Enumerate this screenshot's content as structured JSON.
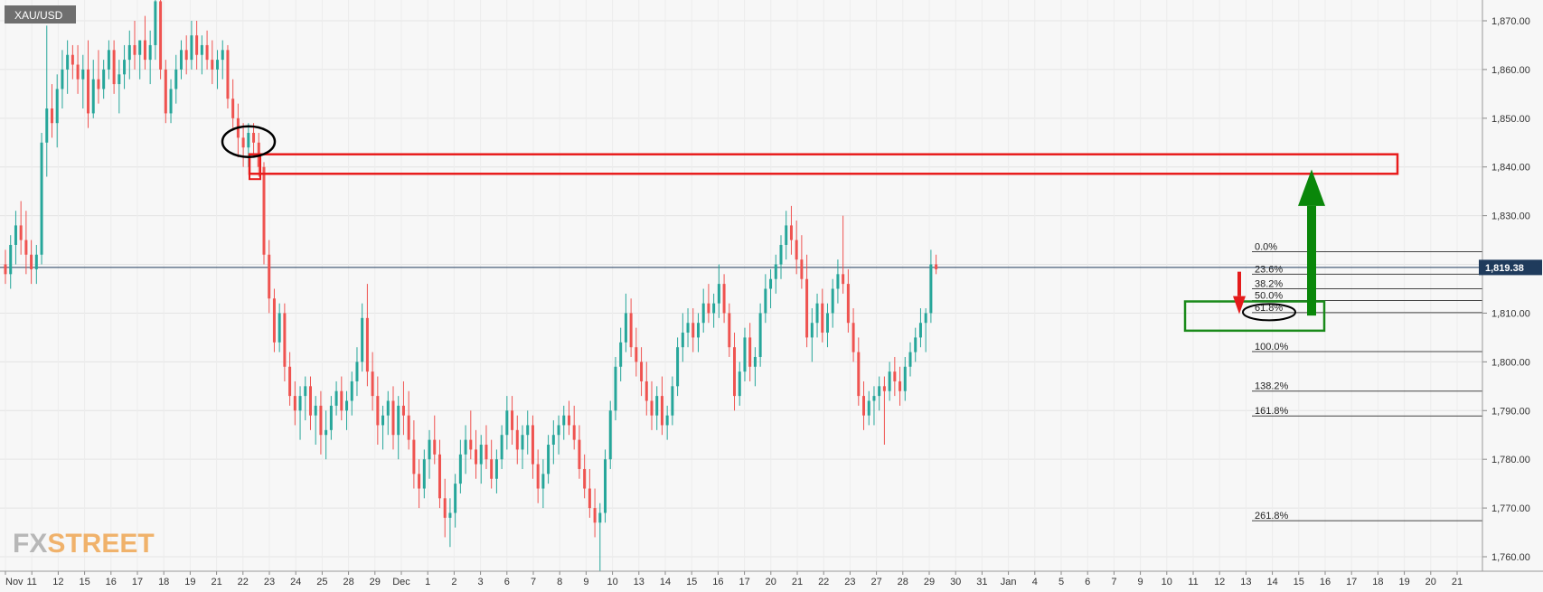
{
  "chart_data": {
    "type": "candlestick",
    "symbol": "XAU/USD",
    "current_price": "1,819.38",
    "current_price_value": 1819.38,
    "ylim": [
      1757,
      1877
    ],
    "y_ticks": [
      {
        "value": 1760,
        "label": "1,760.00"
      },
      {
        "value": 1770,
        "label": "1,770.00"
      },
      {
        "value": 1780,
        "label": "1,780.00"
      },
      {
        "value": 1790,
        "label": "1,790.00"
      },
      {
        "value": 1800,
        "label": "1,800.00"
      },
      {
        "value": 1810,
        "label": "1,810.00"
      },
      {
        "value": 1820,
        "label": "1,820.00"
      },
      {
        "value": 1830,
        "label": "1,830.00"
      },
      {
        "value": 1840,
        "label": "1,840.00"
      },
      {
        "value": 1850,
        "label": "1,850.00"
      },
      {
        "value": 1860,
        "label": "1,860.00"
      },
      {
        "value": 1870,
        "label": "1,870.00"
      }
    ],
    "x_ticks": [
      "Nov",
      "11",
      "12",
      "15",
      "16",
      "17",
      "18",
      "19",
      "21",
      "22",
      "23",
      "24",
      "25",
      "28",
      "29",
      "Dec",
      "1",
      "2",
      "3",
      "6",
      "7",
      "8",
      "9",
      "10",
      "13",
      "14",
      "15",
      "16",
      "17",
      "20",
      "21",
      "22",
      "23",
      "27",
      "28",
      "29",
      "30",
      "31",
      "Jan",
      "4",
      "5",
      "6",
      "7",
      "9",
      "10",
      "11",
      "12",
      "13",
      "14",
      "15",
      "16",
      "17",
      "18",
      "19",
      "20",
      "21"
    ],
    "grid": true,
    "colors": {
      "up": "#26a69a",
      "down": "#ef5350",
      "fib_line": "#444444",
      "zone_red": "#e81c1c",
      "zone_green": "#1a8a1a",
      "arrow_green": "#0a870a",
      "arrow_red": "#e41b1b"
    },
    "fibonacci": [
      {
        "label": "0.0%",
        "value": 1822.6
      },
      {
        "label": "23.6%",
        "value": 1818.0
      },
      {
        "label": "38.2%",
        "value": 1815.0
      },
      {
        "label": "50.0%",
        "value": 1812.6
      },
      {
        "label": "61.8%",
        "value": 1810.1
      },
      {
        "label": "100.0%",
        "value": 1802.1
      },
      {
        "label": "138.2%",
        "value": 1794.0
      },
      {
        "label": "161.8%",
        "value": 1788.9
      },
      {
        "label": "261.8%",
        "value": 1767.4
      }
    ],
    "resistance_zone": [
      1838.6,
      1842.6
    ],
    "support_zone": [
      1806.4,
      1812.4
    ],
    "candles": [
      [
        1820,
        1823,
        1816,
        1818
      ],
      [
        1818,
        1826,
        1815,
        1824
      ],
      [
        1824,
        1831,
        1820,
        1828
      ],
      [
        1828,
        1833,
        1822,
        1825
      ],
      [
        1825,
        1831,
        1818,
        1822
      ],
      [
        1822,
        1825,
        1816,
        1819
      ],
      [
        1819,
        1824,
        1816,
        1822
      ],
      [
        1822,
        1847,
        1820,
        1845
      ],
      [
        1845,
        1869,
        1838,
        1852
      ],
      [
        1852,
        1857,
        1846,
        1849
      ],
      [
        1849,
        1859,
        1844,
        1856
      ],
      [
        1856,
        1864,
        1852,
        1860
      ],
      [
        1860,
        1866,
        1855,
        1863
      ],
      [
        1863,
        1865,
        1858,
        1861
      ],
      [
        1861,
        1865,
        1855,
        1858
      ],
      [
        1858,
        1863,
        1852,
        1860
      ],
      [
        1860,
        1866,
        1848,
        1851
      ],
      [
        1851,
        1862,
        1850,
        1858
      ],
      [
        1858,
        1864,
        1853,
        1856
      ],
      [
        1856,
        1862,
        1854,
        1860
      ],
      [
        1860,
        1866,
        1858,
        1864
      ],
      [
        1864,
        1866,
        1855,
        1857
      ],
      [
        1857,
        1862,
        1851,
        1859
      ],
      [
        1859,
        1865,
        1856,
        1862
      ],
      [
        1862,
        1868,
        1858,
        1865
      ],
      [
        1865,
        1870,
        1860,
        1863
      ],
      [
        1863,
        1866,
        1858,
        1866
      ],
      [
        1866,
        1871,
        1860,
        1862
      ],
      [
        1862,
        1868,
        1857,
        1865
      ],
      [
        1865,
        1877,
        1862,
        1874
      ],
      [
        1874,
        1876,
        1858,
        1860
      ],
      [
        1860,
        1862,
        1849,
        1851
      ],
      [
        1851,
        1858,
        1849,
        1856
      ],
      [
        1856,
        1863,
        1853,
        1860
      ],
      [
        1860,
        1866,
        1858,
        1864
      ],
      [
        1864,
        1867,
        1859,
        1862
      ],
      [
        1862,
        1870,
        1860,
        1867
      ],
      [
        1867,
        1870,
        1860,
        1863
      ],
      [
        1863,
        1867,
        1859,
        1865
      ],
      [
        1865,
        1868,
        1860,
        1862
      ],
      [
        1862,
        1866,
        1857,
        1860
      ],
      [
        1860,
        1864,
        1856,
        1862
      ],
      [
        1862,
        1866,
        1858,
        1864
      ],
      [
        1864,
        1865,
        1852,
        1854
      ],
      [
        1854,
        1858,
        1848,
        1850
      ],
      [
        1850,
        1853,
        1842,
        1846
      ],
      [
        1846,
        1849,
        1840,
        1844
      ],
      [
        1844,
        1849,
        1840,
        1847
      ],
      [
        1847,
        1849,
        1842,
        1845
      ],
      [
        1845,
        1847,
        1838,
        1840
      ],
      [
        1840,
        1841,
        1820,
        1822
      ],
      [
        1822,
        1825,
        1810,
        1813
      ],
      [
        1813,
        1815,
        1802,
        1804
      ],
      [
        1804,
        1812,
        1802,
        1810
      ],
      [
        1810,
        1812,
        1796,
        1799
      ],
      [
        1799,
        1802,
        1791,
        1793
      ],
      [
        1793,
        1796,
        1787,
        1790
      ],
      [
        1790,
        1795,
        1784,
        1793
      ],
      [
        1793,
        1797,
        1788,
        1795
      ],
      [
        1795,
        1797,
        1786,
        1789
      ],
      [
        1789,
        1793,
        1783,
        1791
      ],
      [
        1791,
        1794,
        1781,
        1785
      ],
      [
        1785,
        1790,
        1780,
        1786
      ],
      [
        1786,
        1793,
        1784,
        1791
      ],
      [
        1791,
        1796,
        1789,
        1794
      ],
      [
        1794,
        1797,
        1788,
        1790
      ],
      [
        1790,
        1794,
        1786,
        1792
      ],
      [
        1792,
        1798,
        1789,
        1796
      ],
      [
        1796,
        1803,
        1793,
        1800
      ],
      [
        1800,
        1812,
        1798,
        1809
      ],
      [
        1809,
        1816,
        1795,
        1798
      ],
      [
        1798,
        1802,
        1790,
        1793
      ],
      [
        1793,
        1797,
        1783,
        1787
      ],
      [
        1787,
        1791,
        1782,
        1789
      ],
      [
        1789,
        1794,
        1785,
        1792
      ],
      [
        1792,
        1795,
        1782,
        1785
      ],
      [
        1785,
        1793,
        1780,
        1791
      ],
      [
        1791,
        1796,
        1785,
        1789
      ],
      [
        1789,
        1794,
        1782,
        1784
      ],
      [
        1784,
        1788,
        1774,
        1777
      ],
      [
        1777,
        1780,
        1770,
        1774
      ],
      [
        1774,
        1782,
        1772,
        1780
      ],
      [
        1780,
        1786,
        1776,
        1784
      ],
      [
        1784,
        1789,
        1779,
        1781
      ],
      [
        1781,
        1784,
        1770,
        1772
      ],
      [
        1772,
        1776,
        1764,
        1768
      ],
      [
        1768,
        1772,
        1762,
        1769
      ],
      [
        1769,
        1777,
        1766,
        1775
      ],
      [
        1775,
        1784,
        1773,
        1781
      ],
      [
        1781,
        1787,
        1777,
        1784
      ],
      [
        1784,
        1790,
        1780,
        1782
      ],
      [
        1782,
        1786,
        1776,
        1779
      ],
      [
        1779,
        1785,
        1775,
        1783
      ],
      [
        1783,
        1787,
        1778,
        1780
      ],
      [
        1780,
        1784,
        1774,
        1776
      ],
      [
        1776,
        1782,
        1773,
        1780
      ],
      [
        1780,
        1787,
        1778,
        1785
      ],
      [
        1785,
        1793,
        1782,
        1790
      ],
      [
        1790,
        1793,
        1783,
        1786
      ],
      [
        1786,
        1789,
        1779,
        1782
      ],
      [
        1782,
        1787,
        1778,
        1785
      ],
      [
        1785,
        1790,
        1781,
        1787
      ],
      [
        1787,
        1789,
        1776,
        1779
      ],
      [
        1779,
        1782,
        1771,
        1774
      ],
      [
        1774,
        1780,
        1770,
        1777
      ],
      [
        1777,
        1785,
        1775,
        1783
      ],
      [
        1783,
        1788,
        1779,
        1785
      ],
      [
        1785,
        1789,
        1781,
        1787
      ],
      [
        1787,
        1791,
        1784,
        1789
      ],
      [
        1789,
        1792,
        1785,
        1787
      ],
      [
        1787,
        1791,
        1782,
        1784
      ],
      [
        1784,
        1787,
        1776,
        1778
      ],
      [
        1778,
        1781,
        1772,
        1774
      ],
      [
        1774,
        1778,
        1768,
        1770
      ],
      [
        1770,
        1774,
        1764,
        1767
      ],
      [
        1767,
        1771,
        1757,
        1769
      ],
      [
        1769,
        1782,
        1767,
        1780
      ],
      [
        1780,
        1792,
        1778,
        1790
      ],
      [
        1790,
        1801,
        1788,
        1799
      ],
      [
        1799,
        1807,
        1796,
        1804
      ],
      [
        1804,
        1814,
        1802,
        1810
      ],
      [
        1810,
        1813,
        1801,
        1803
      ],
      [
        1803,
        1807,
        1797,
        1800
      ],
      [
        1800,
        1803,
        1793,
        1796
      ],
      [
        1796,
        1800,
        1789,
        1792
      ],
      [
        1792,
        1796,
        1786,
        1789
      ],
      [
        1789,
        1795,
        1786,
        1793
      ],
      [
        1793,
        1797,
        1785,
        1787
      ],
      [
        1787,
        1791,
        1784,
        1789
      ],
      [
        1789,
        1797,
        1787,
        1795
      ],
      [
        1795,
        1805,
        1793,
        1803
      ],
      [
        1803,
        1810,
        1800,
        1806
      ],
      [
        1806,
        1811,
        1803,
        1808
      ],
      [
        1808,
        1811,
        1802,
        1805
      ],
      [
        1805,
        1810,
        1802,
        1808
      ],
      [
        1808,
        1815,
        1806,
        1812
      ],
      [
        1812,
        1816,
        1808,
        1810
      ],
      [
        1810,
        1814,
        1807,
        1812
      ],
      [
        1812,
        1820,
        1809,
        1816
      ],
      [
        1816,
        1818,
        1808,
        1810
      ],
      [
        1810,
        1812,
        1801,
        1803
      ],
      [
        1803,
        1806,
        1790,
        1793
      ],
      [
        1793,
        1800,
        1791,
        1798
      ],
      [
        1798,
        1807,
        1796,
        1805
      ],
      [
        1805,
        1808,
        1796,
        1799
      ],
      [
        1799,
        1803,
        1795,
        1801
      ],
      [
        1801,
        1812,
        1799,
        1810
      ],
      [
        1810,
        1818,
        1808,
        1815
      ],
      [
        1815,
        1819,
        1811,
        1817
      ],
      [
        1817,
        1822,
        1814,
        1820
      ],
      [
        1820,
        1826,
        1817,
        1824
      ],
      [
        1824,
        1831,
        1821,
        1828
      ],
      [
        1828,
        1832,
        1822,
        1825
      ],
      [
        1825,
        1829,
        1818,
        1821
      ],
      [
        1821,
        1826,
        1815,
        1817
      ],
      [
        1817,
        1822,
        1803,
        1805
      ],
      [
        1805,
        1811,
        1800,
        1808
      ],
      [
        1808,
        1814,
        1805,
        1812
      ],
      [
        1812,
        1815,
        1804,
        1806
      ],
      [
        1806,
        1812,
        1803,
        1810
      ],
      [
        1810,
        1817,
        1807,
        1815
      ],
      [
        1815,
        1821,
        1812,
        1818
      ],
      [
        1818,
        1830,
        1814,
        1816
      ],
      [
        1816,
        1819,
        1806,
        1808
      ],
      [
        1808,
        1811,
        1800,
        1802
      ],
      [
        1802,
        1805,
        1791,
        1793
      ],
      [
        1793,
        1796,
        1786,
        1789
      ],
      [
        1789,
        1794,
        1787,
        1792
      ],
      [
        1792,
        1795,
        1787,
        1793
      ],
      [
        1793,
        1797,
        1790,
        1795
      ],
      [
        1795,
        1797,
        1783,
        1794
      ],
      [
        1794,
        1800,
        1792,
        1798
      ],
      [
        1798,
        1801,
        1793,
        1796
      ],
      [
        1796,
        1799,
        1791,
        1794
      ],
      [
        1794,
        1801,
        1792,
        1799
      ],
      [
        1799,
        1804,
        1797,
        1802
      ],
      [
        1802,
        1807,
        1800,
        1805
      ],
      [
        1805,
        1811,
        1803,
        1808
      ],
      [
        1808,
        1811,
        1802,
        1810
      ],
      [
        1810,
        1823,
        1808,
        1820
      ],
      [
        1820,
        1822,
        1818,
        1819
      ]
    ]
  },
  "logo": {
    "part1": "FX",
    "part2": "STREET"
  }
}
